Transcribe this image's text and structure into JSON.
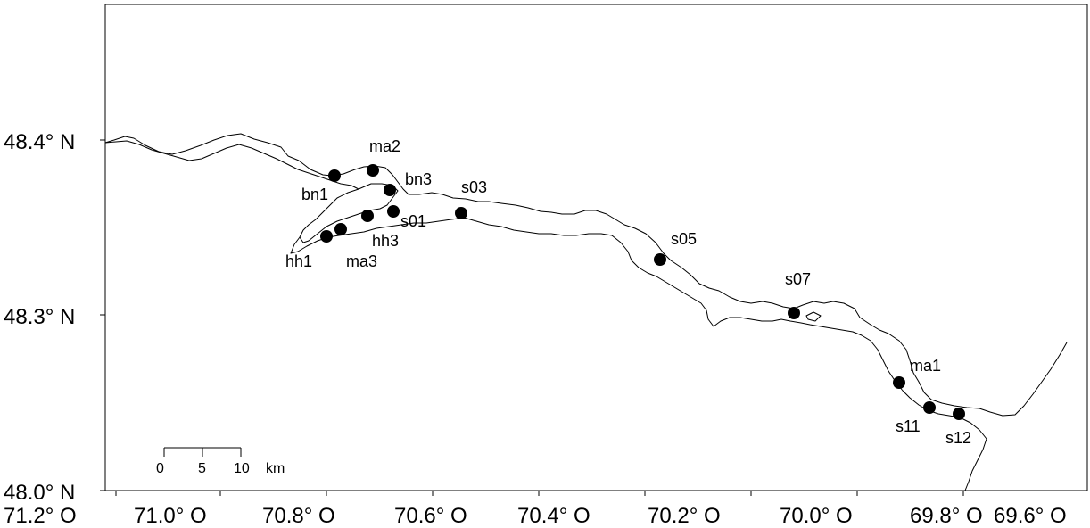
{
  "map": {
    "x_axis": {
      "tick_labels": [
        "71.2° O",
        "71.0° O",
        "70.8° O",
        "70.6° O",
        "70.4° O",
        "70.2° O",
        "70.0° O",
        "69.8° O",
        "69.6° O"
      ]
    },
    "y_axis": {
      "tick_labels": [
        "48.0° N",
        "48.3° N",
        "48.4° N"
      ]
    },
    "scale_bar": {
      "labels": [
        "0",
        "5",
        "10"
      ],
      "unit": "km"
    },
    "stations": [
      {
        "id": "bn1",
        "label": "bn1"
      },
      {
        "id": "ma2",
        "label": "ma2"
      },
      {
        "id": "bn3",
        "label": "bn3"
      },
      {
        "id": "s03",
        "label": "s03"
      },
      {
        "id": "s01",
        "label": "s01"
      },
      {
        "id": "hh3",
        "label": "hh3"
      },
      {
        "id": "hh1",
        "label": "hh1"
      },
      {
        "id": "ma3",
        "label": "ma3"
      },
      {
        "id": "s05",
        "label": "s05"
      },
      {
        "id": "s07",
        "label": "s07"
      },
      {
        "id": "ma1",
        "label": "ma1"
      },
      {
        "id": "s11",
        "label": "s11"
      },
      {
        "id": "s12",
        "label": "s12"
      }
    ]
  }
}
